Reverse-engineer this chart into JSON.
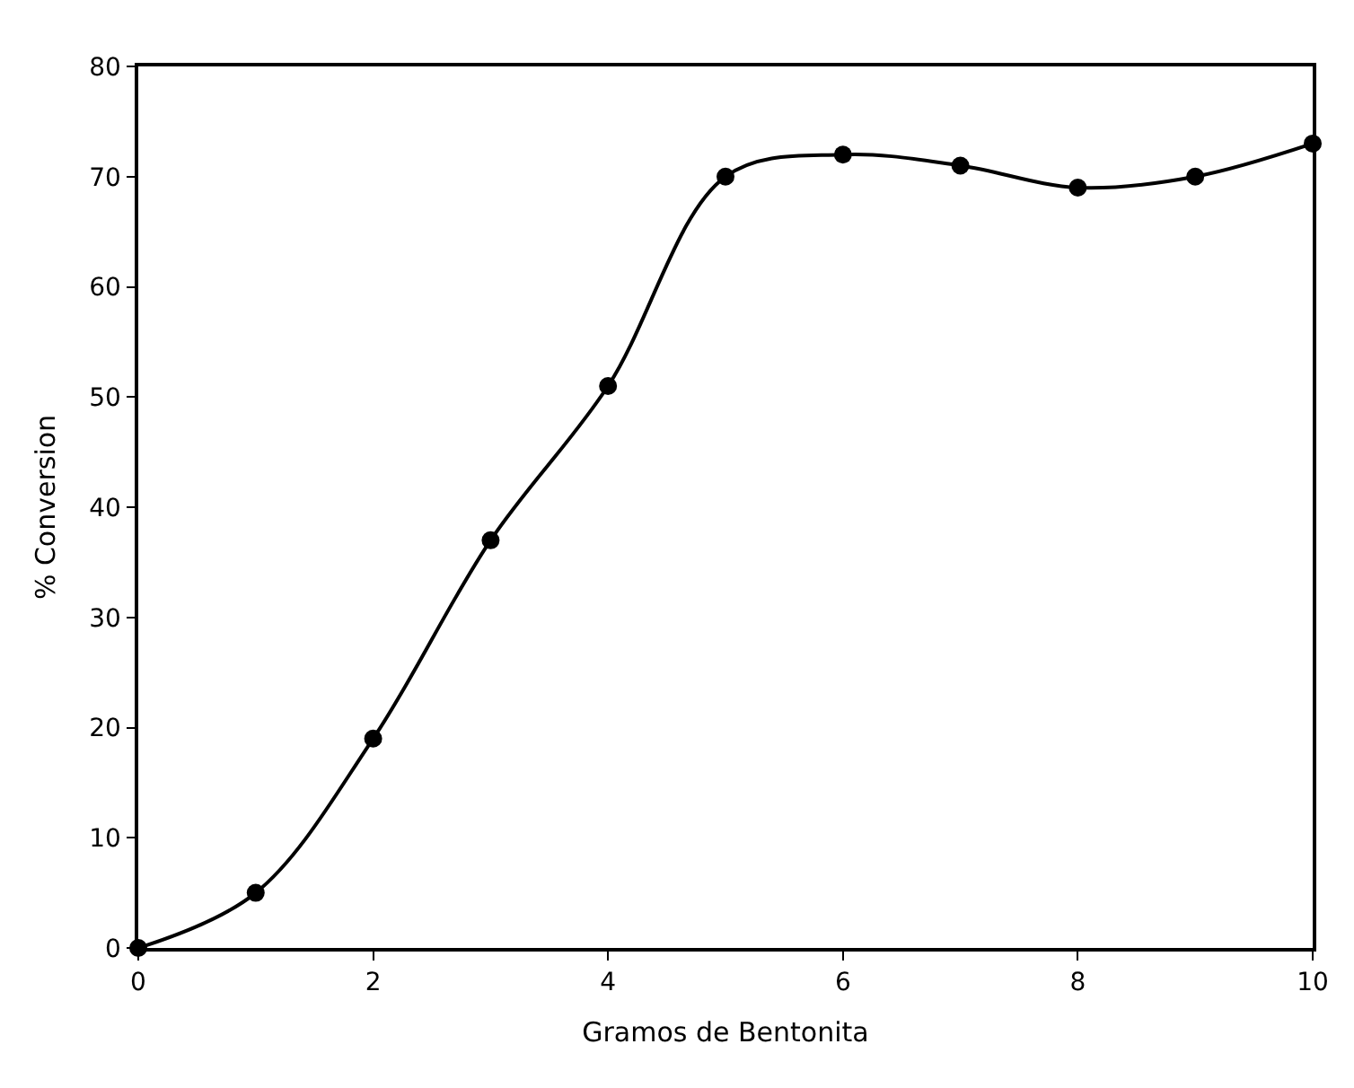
{
  "chart_data": {
    "type": "line",
    "xlabel": "Gramos de Bentonita",
    "ylabel": "% Conversion",
    "x": [
      0,
      1,
      2,
      3,
      4,
      5,
      6,
      7,
      8,
      9,
      10
    ],
    "series": [
      {
        "color": "#000000",
        "values": [
          0,
          5,
          19,
          37,
          51,
          70,
          72,
          71,
          69,
          70,
          73
        ]
      }
    ],
    "xlim": [
      0,
      10
    ],
    "xticks": [
      0,
      2,
      4,
      6,
      8,
      10
    ],
    "ylim": [
      0,
      80
    ],
    "yticks": [
      0,
      10,
      20,
      30,
      40,
      50,
      60,
      70,
      80
    ],
    "marker": "circle",
    "line_style": "solid"
  }
}
